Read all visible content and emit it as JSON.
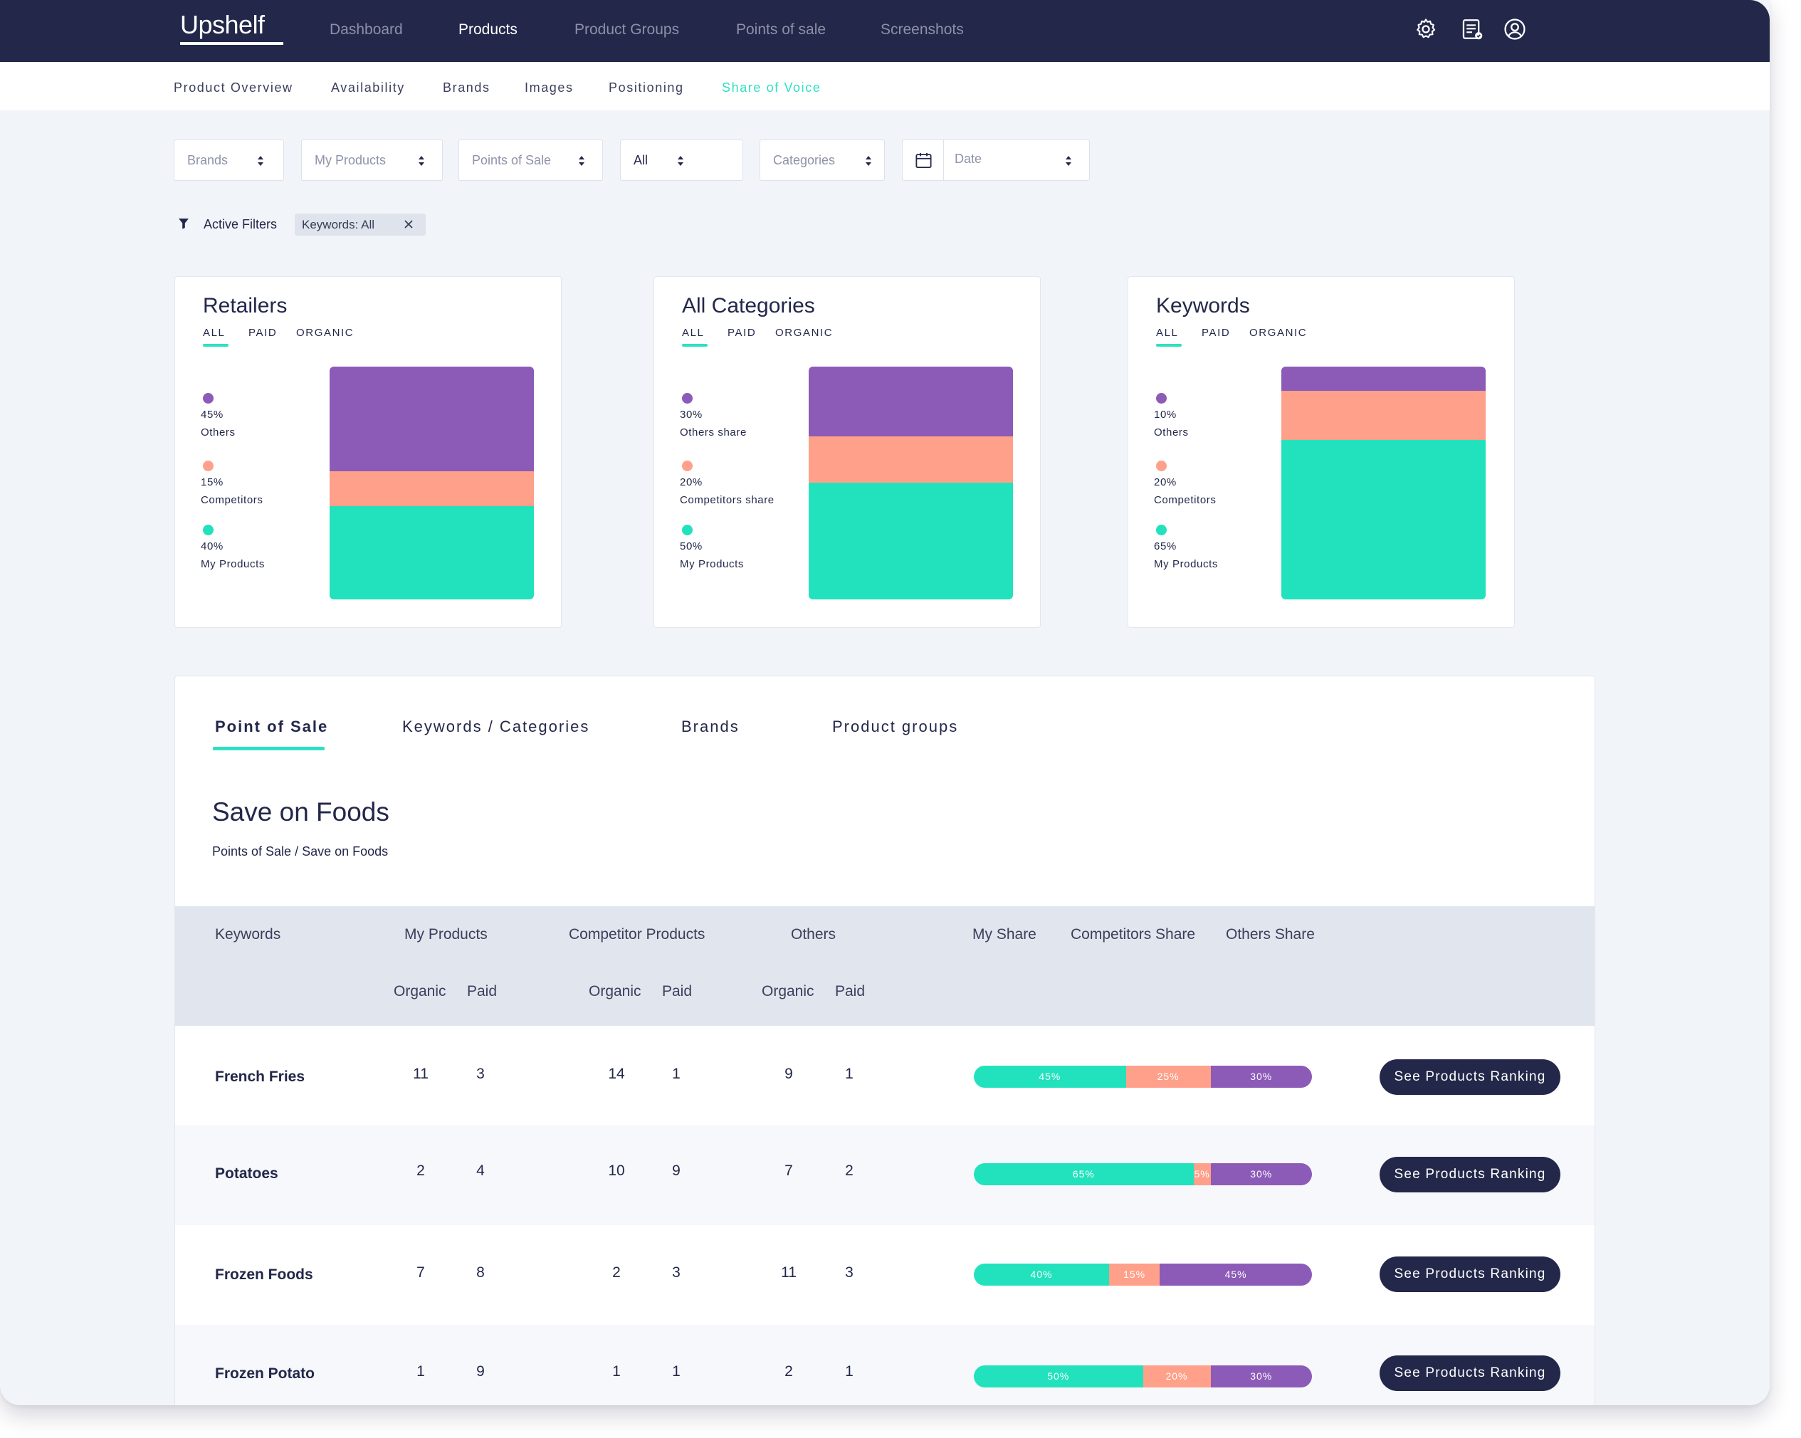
{
  "app": {
    "logo": "Upshelf"
  },
  "nav": {
    "items": [
      {
        "label": "Dashboard"
      },
      {
        "label": "Products"
      },
      {
        "label": "Product Groups"
      },
      {
        "label": "Points of sale"
      },
      {
        "label": "Screenshots"
      }
    ],
    "active": "Products",
    "icons": [
      "gear-icon",
      "report-icon",
      "user-icon"
    ]
  },
  "subnav": {
    "items": [
      {
        "label": "Product Overview"
      },
      {
        "label": "Availability"
      },
      {
        "label": "Brands"
      },
      {
        "label": "Images"
      },
      {
        "label": "Positioning"
      },
      {
        "label": "Share of Voice"
      }
    ],
    "active": "Share of Voice"
  },
  "filters": {
    "brands": "Brands",
    "my_products": "My Products",
    "points_of_sale": "Points of Sale",
    "all": "All",
    "categories": "Categories",
    "date": "Date"
  },
  "active_filters": {
    "label": "Active Filters",
    "chip": "Keywords: All"
  },
  "cards": [
    {
      "title": "Retailers",
      "tabs": [
        "ALL",
        "PAID",
        "ORGANIC"
      ],
      "legend": [
        {
          "pct": "45%",
          "label": "Others"
        },
        {
          "pct": "15%",
          "label": "Competitors"
        },
        {
          "pct": "40%",
          "label": "My Products"
        }
      ]
    },
    {
      "title": "All Categories",
      "tabs": [
        "ALL",
        "PAID",
        "ORGANIC"
      ],
      "legend": [
        {
          "pct": "30%",
          "label": "Others share"
        },
        {
          "pct": "20%",
          "label": "Competitors share"
        },
        {
          "pct": "50%",
          "label": "My Products"
        }
      ]
    },
    {
      "title": "Keywords",
      "tabs": [
        "ALL",
        "PAID",
        "ORGANIC"
      ],
      "legend": [
        {
          "pct": "10%",
          "label": "Others"
        },
        {
          "pct": "20%",
          "label": "Competitors"
        },
        {
          "pct": "65%",
          "label": "My Products"
        }
      ]
    }
  ],
  "colors": {
    "others": "#8c5bb7",
    "competitors": "#ffa08a",
    "my_products": "#22e2bd",
    "navy": "#23284a",
    "accent": "#2ee0c3"
  },
  "chart_data": [
    {
      "type": "bar",
      "stacked": true,
      "title": "Retailers",
      "categories": [
        "Others",
        "Competitors",
        "My Products"
      ],
      "values": [
        45,
        15,
        40
      ]
    },
    {
      "type": "bar",
      "stacked": true,
      "title": "All Categories",
      "categories": [
        "Others share",
        "Competitors share",
        "My Products"
      ],
      "values": [
        30,
        20,
        50
      ]
    },
    {
      "type": "bar",
      "stacked": true,
      "title": "Keywords",
      "categories": [
        "Others",
        "Competitors",
        "My Products"
      ],
      "values": [
        10,
        20,
        65
      ]
    }
  ],
  "table_tabs": [
    {
      "label": "Point of Sale"
    },
    {
      "label": "Keywords / Categories"
    },
    {
      "label": "Brands"
    },
    {
      "label": "Product groups"
    }
  ],
  "active_table_tab": "Point of Sale",
  "pos": {
    "title": "Save on Foods",
    "breadcrumb": "Points of Sale / Save on Foods"
  },
  "table": {
    "headers": {
      "keywords": "Keywords",
      "my_products": "My Products",
      "competitor_products": "Competitor Products",
      "others": "Others",
      "my_share": "My Share",
      "competitors_share": "Competitors Share",
      "others_share": "Others Share",
      "organic": "Organic",
      "paid": "Paid"
    },
    "button_label": "See Products Ranking",
    "rows": [
      {
        "keyword": "French Fries",
        "my_organic": "11",
        "my_paid": "3",
        "comp_organic": "14",
        "comp_paid": "1",
        "oth_organic": "9",
        "oth_paid": "1",
        "share": [
          {
            "label": "45%",
            "value": 45
          },
          {
            "label": "25%",
            "value": 25
          },
          {
            "label": "30%",
            "value": 30
          }
        ]
      },
      {
        "keyword": "Potatoes",
        "my_organic": "2",
        "my_paid": "4",
        "comp_organic": "10",
        "comp_paid": "9",
        "oth_organic": "7",
        "oth_paid": "2",
        "share": [
          {
            "label": "65%",
            "value": 65
          },
          {
            "label": "5%",
            "value": 5
          },
          {
            "label": "30%",
            "value": 30
          }
        ]
      },
      {
        "keyword": "Frozen Foods",
        "my_organic": "7",
        "my_paid": "8",
        "comp_organic": "2",
        "comp_paid": "3",
        "oth_organic": "11",
        "oth_paid": "3",
        "share": [
          {
            "label": "40%",
            "value": 40
          },
          {
            "label": "15%",
            "value": 15
          },
          {
            "label": "45%",
            "value": 45
          }
        ]
      },
      {
        "keyword": "Frozen Potato",
        "my_organic": "1",
        "my_paid": "9",
        "comp_organic": "1",
        "comp_paid": "1",
        "oth_organic": "2",
        "oth_paid": "1",
        "share": [
          {
            "label": "50%",
            "value": 50
          },
          {
            "label": "20%",
            "value": 20
          },
          {
            "label": "30%",
            "value": 30
          }
        ]
      }
    ]
  }
}
